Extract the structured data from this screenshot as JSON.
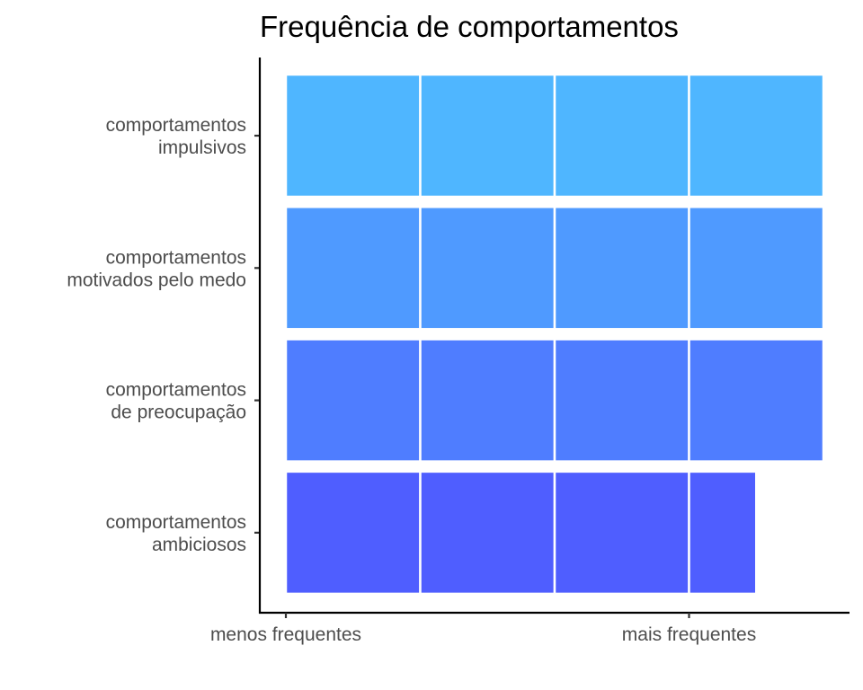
{
  "chart_data": {
    "type": "bar",
    "orientation": "horizontal",
    "stacked": true,
    "title": "Frequência de comportamentos",
    "xlabel": "",
    "ylabel": "",
    "xlim": [
      0,
      4
    ],
    "x_ticks": [
      {
        "value": 0,
        "label": "menos frequentes"
      },
      {
        "value": 3,
        "label": "mais frequentes"
      }
    ],
    "grid": false,
    "legend": "none",
    "categories": [
      {
        "label": [
          "comportamentos",
          "impulsivos"
        ],
        "value": 4,
        "segments": [
          1,
          1,
          1,
          1
        ],
        "color": "#4fb6ff"
      },
      {
        "label": [
          "comportamentos",
          "motivados pelo medo"
        ],
        "value": 4,
        "segments": [
          1,
          1,
          1,
          1
        ],
        "color": "#4f9aff"
      },
      {
        "label": [
          "comportamentos",
          "de preocupação"
        ],
        "value": 4,
        "segments": [
          1,
          1,
          1,
          1
        ],
        "color": "#4f7dff"
      },
      {
        "label": [
          "comportamentos",
          "ambiciosos"
        ],
        "value": 3.5,
        "segments": [
          1,
          1,
          1,
          0.5
        ],
        "color": "#4f5eff"
      }
    ]
  }
}
